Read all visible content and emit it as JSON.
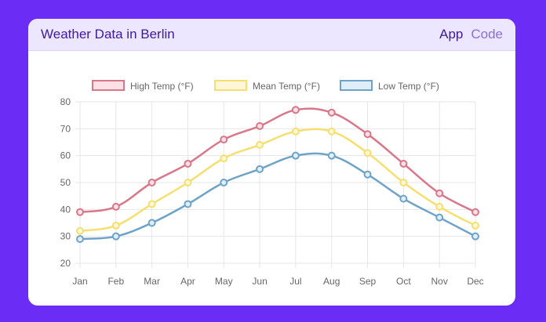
{
  "header": {
    "title": "Weather Data in Berlin",
    "tabs": [
      {
        "label": "App",
        "active": true
      },
      {
        "label": "Code",
        "active": false
      }
    ]
  },
  "chart_data": {
    "type": "line",
    "title": "",
    "xlabel": "",
    "ylabel": "",
    "categories": [
      "Jan",
      "Feb",
      "Mar",
      "Apr",
      "May",
      "Jun",
      "Jul",
      "Aug",
      "Sep",
      "Oct",
      "Nov",
      "Dec"
    ],
    "ylim": [
      20,
      80
    ],
    "yticks": [
      20,
      30,
      40,
      50,
      60,
      70,
      80
    ],
    "grid": true,
    "legend_position": "top",
    "series": [
      {
        "name": "High Temp (°F)",
        "color": "#d9778a",
        "fill": "#fbe1e6",
        "values": [
          39,
          41,
          50,
          57,
          66,
          71,
          77,
          76,
          68,
          57,
          46,
          39
        ]
      },
      {
        "name": "Mean Temp (°F)",
        "color": "#f5df6e",
        "fill": "#fdf6d8",
        "values": [
          32,
          34,
          42,
          50,
          59,
          64,
          69,
          69,
          61,
          50,
          41,
          34
        ]
      },
      {
        "name": "Low Temp (°F)",
        "color": "#6ea3c8",
        "fill": "#e0eef8",
        "values": [
          29,
          30,
          35,
          42,
          50,
          55,
          60,
          60,
          53,
          44,
          37,
          30
        ]
      }
    ]
  }
}
